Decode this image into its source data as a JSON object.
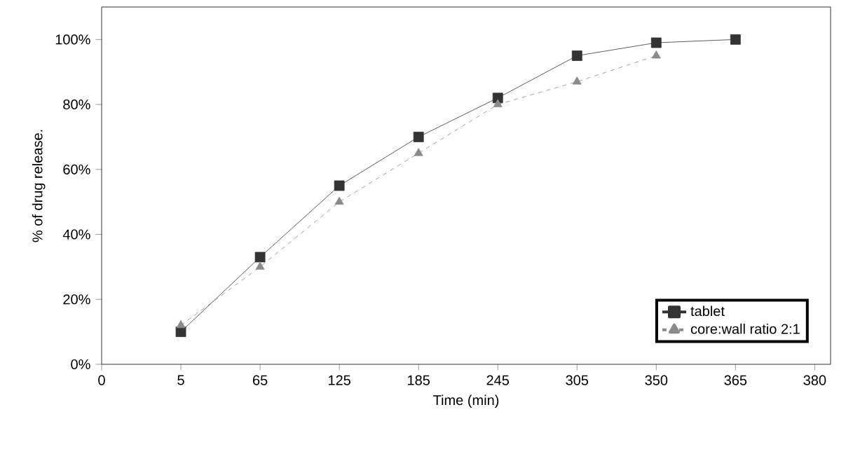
{
  "chart_data": {
    "type": "line",
    "xlabel": "Time (min)",
    "ylabel": "% of drug release.",
    "categories": [
      "0",
      "5",
      "65",
      "125",
      "185",
      "245",
      "305",
      "350",
      "365",
      "380"
    ],
    "ylim": [
      0,
      110
    ],
    "yticks": [
      {
        "value": 0,
        "label": "0%"
      },
      {
        "value": 20,
        "label": "20%"
      },
      {
        "value": 40,
        "label": "40%"
      },
      {
        "value": 60,
        "label": "60%"
      },
      {
        "value": 80,
        "label": "80%"
      },
      {
        "value": 100,
        "label": "100%"
      }
    ],
    "grid": false,
    "legend": "bottom right",
    "series": [
      {
        "name": "tablet",
        "color": "#333333",
        "marker": "square",
        "line_style": "solid",
        "values": [
          null,
          10,
          33,
          55,
          70,
          82,
          95,
          99,
          100,
          null
        ]
      },
      {
        "name": "core:wall ratio 2:1",
        "color": "#8a8a8a",
        "marker": "triangle",
        "line_style": "dashed",
        "values": [
          null,
          12,
          30,
          50,
          65,
          80,
          87,
          95,
          null,
          null
        ]
      }
    ]
  }
}
